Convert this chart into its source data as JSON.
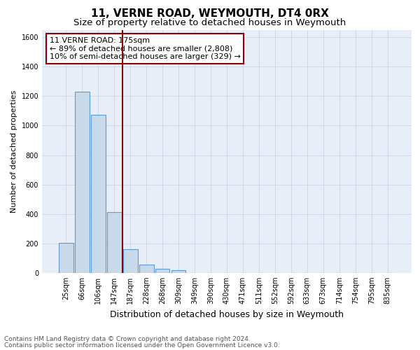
{
  "title": "11, VERNE ROAD, WEYMOUTH, DT4 0RX",
  "subtitle": "Size of property relative to detached houses in Weymouth",
  "xlabel": "Distribution of detached houses by size in Weymouth",
  "ylabel": "Number of detached properties",
  "bar_labels": [
    "25sqm",
    "66sqm",
    "106sqm",
    "147sqm",
    "187sqm",
    "228sqm",
    "268sqm",
    "309sqm",
    "349sqm",
    "390sqm",
    "430sqm",
    "471sqm",
    "511sqm",
    "552sqm",
    "592sqm",
    "633sqm",
    "673sqm",
    "714sqm",
    "754sqm",
    "795sqm",
    "835sqm"
  ],
  "bar_values": [
    205,
    1230,
    1075,
    415,
    160,
    55,
    30,
    20,
    0,
    0,
    0,
    0,
    0,
    0,
    0,
    0,
    0,
    0,
    0,
    0,
    0
  ],
  "bar_color": "#c8d9ea",
  "bar_edge_color": "#5b9bd5",
  "vline_color": "#8b0000",
  "ylim": [
    0,
    1650
  ],
  "yticks": [
    0,
    200,
    400,
    600,
    800,
    1000,
    1200,
    1400,
    1600
  ],
  "annotation_box_text_line1": "11 VERNE ROAD: 175sqm",
  "annotation_box_text_line2": "← 89% of detached houses are smaller (2,808)",
  "annotation_box_text_line3": "10% of semi-detached houses are larger (329) →",
  "annotation_box_edge_color": "#8b0000",
  "annotation_box_facecolor": "#ffffff",
  "footnote_line1": "Contains HM Land Registry data © Crown copyright and database right 2024.",
  "footnote_line2": "Contains public sector information licensed under the Open Government Licence v3.0.",
  "grid_color": "#d0d8e8",
  "background_color": "#e8eef8",
  "title_fontsize": 11,
  "subtitle_fontsize": 9.5,
  "xlabel_fontsize": 9,
  "ylabel_fontsize": 8,
  "tick_fontsize": 7,
  "annotation_fontsize": 8,
  "footnote_fontsize": 6.5
}
